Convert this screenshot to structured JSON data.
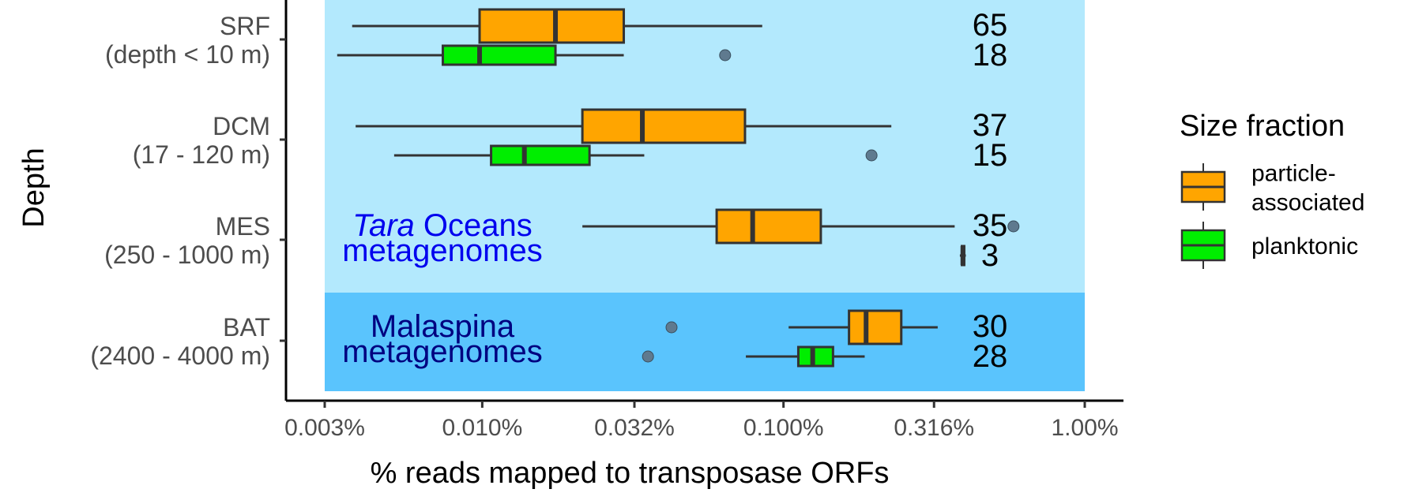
{
  "chart_data": {
    "type": "boxplot",
    "orientation": "horizontal",
    "x_scale": "log10",
    "xlabel": "% reads mapped to transposase ORFs",
    "ylabel": "Depth",
    "xlim": [
      0.003,
      1.0
    ],
    "x_ticks": [
      {
        "value": 0.003,
        "label": "0.003%"
      },
      {
        "value": 0.01,
        "label": "0.010%"
      },
      {
        "value": 0.032,
        "label": "0.032%"
      },
      {
        "value": 0.1,
        "label": "0.100%"
      },
      {
        "value": 0.316,
        "label": "0.316%"
      },
      {
        "value": 1.0,
        "label": "1.00%"
      }
    ],
    "categories": [
      {
        "name": "SRF",
        "range": "(depth < 10 m)"
      },
      {
        "name": "DCM",
        "range": "(17 - 120 m)"
      },
      {
        "name": "MES",
        "range": "(250 - 1000 m)"
      },
      {
        "name": "BAT",
        "range": "(2400 - 4000 m)"
      }
    ],
    "regions": [
      {
        "label_italic": "Tara",
        "label": " Oceans",
        "label2": "metagenomes",
        "categories": [
          "SRF",
          "DCM",
          "MES"
        ],
        "color": "#b3e9fd",
        "text_color": "#0000ee"
      },
      {
        "label_italic": "",
        "label": "Malaspina",
        "label2": "metagenomes",
        "categories": [
          "BAT"
        ],
        "color": "#5ac4fd",
        "text_color": "#000080"
      }
    ],
    "legend": {
      "title": "Size fraction",
      "position": "right",
      "entries": [
        {
          "label_lines": [
            "particle-",
            "associated"
          ],
          "color": "#ffa500"
        },
        {
          "label_lines": [
            "planktonic"
          ],
          "color": "#00ee00"
        }
      ]
    },
    "series": [
      {
        "name": "particle-associated",
        "color": "#ffa500",
        "boxes": [
          {
            "category": "SRF",
            "whisker_low": 0.0037,
            "q1": 0.0098,
            "median": 0.0175,
            "q3": 0.0295,
            "whisker_high": 0.085,
            "outliers": [],
            "n": 65
          },
          {
            "category": "DCM",
            "whisker_low": 0.0038,
            "q1": 0.0215,
            "median": 0.034,
            "q3": 0.0745,
            "whisker_high": 0.228,
            "outliers": [],
            "n": 37
          },
          {
            "category": "MES",
            "whisker_low": 0.0215,
            "q1": 0.06,
            "median": 0.079,
            "q3": 0.133,
            "whisker_high": 0.37,
            "outliers": [
              0.58
            ],
            "n": 35
          },
          {
            "category": "BAT",
            "whisker_low": 0.104,
            "q1": 0.165,
            "median": 0.188,
            "q3": 0.246,
            "whisker_high": 0.325,
            "outliers": [
              0.0425
            ],
            "n": 30
          }
        ]
      },
      {
        "name": "planktonic",
        "color": "#00ee00",
        "boxes": [
          {
            "category": "SRF",
            "whisker_low": 0.0033,
            "q1": 0.0074,
            "median": 0.0098,
            "q3": 0.0175,
            "whisker_high": 0.0295,
            "outliers": [
              0.064
            ],
            "n": 18
          },
          {
            "category": "DCM",
            "whisker_low": 0.0051,
            "q1": 0.0107,
            "median": 0.0138,
            "q3": 0.0227,
            "whisker_high": 0.0345,
            "outliers": [
              0.196
            ],
            "n": 15
          },
          {
            "category": "MES",
            "whisker_low": 0.385,
            "q1": 0.391,
            "median": 0.394,
            "q3": 0.398,
            "whisker_high": 0.403,
            "outliers": [],
            "n": 3
          },
          {
            "category": "BAT",
            "whisker_low": 0.075,
            "q1": 0.112,
            "median": 0.125,
            "q3": 0.146,
            "whisker_high": 0.186,
            "outliers": [
              0.0355
            ],
            "n": 28
          }
        ]
      }
    ]
  }
}
